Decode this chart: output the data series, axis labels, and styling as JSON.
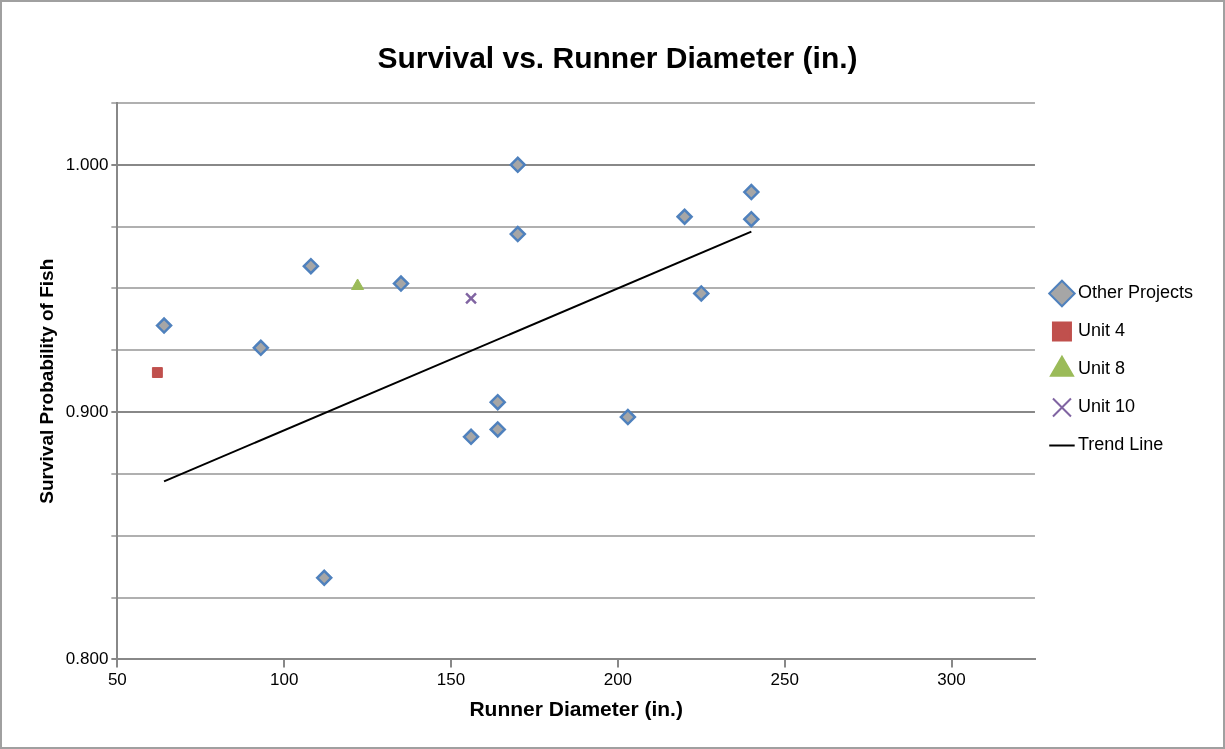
{
  "chart_data": {
    "type": "scatter",
    "title": "Survival vs. Runner Diameter (in.)",
    "xlabel": "Runner Diameter (in.)",
    "ylabel": "Survival Probability of Fish",
    "xlim": [
      50,
      325
    ],
    "xticks": [
      50,
      100,
      150,
      200,
      250,
      300
    ],
    "ylim": [
      0.8,
      1.025
    ],
    "yticks": [
      {
        "value": 0.8,
        "label": "0.800"
      },
      {
        "value": 0.825,
        "label": null
      },
      {
        "value": 0.85,
        "label": null
      },
      {
        "value": 0.875,
        "label": null
      },
      {
        "value": 0.9,
        "label": "0.900"
      },
      {
        "value": 0.925,
        "label": null
      },
      {
        "value": 0.95,
        "label": null
      },
      {
        "value": 0.975,
        "label": null
      },
      {
        "value": 1.0,
        "label": "1.000"
      },
      {
        "value": 1.025,
        "label": null
      }
    ],
    "grid": "y",
    "legend": "right",
    "series": [
      {
        "name": "Other Projects",
        "color": "#4f81bd",
        "marker": "diamond",
        "x": [
          64,
          93,
          108,
          112,
          135,
          170,
          170,
          164,
          164,
          156,
          203,
          220,
          225,
          240,
          240
        ],
        "values": [
          0.935,
          0.926,
          0.959,
          0.833,
          0.952,
          1.0,
          0.972,
          0.904,
          0.893,
          0.89,
          0.898,
          0.979,
          0.948,
          0.989,
          0.978
        ]
      },
      {
        "name": "Unit 4",
        "color": "#c0504d",
        "marker": "square",
        "x": [
          62
        ],
        "values": [
          0.916
        ]
      },
      {
        "name": "Unit 8",
        "color": "#9bbb59",
        "marker": "triangle",
        "x": [
          122
        ],
        "values": [
          0.951
        ]
      },
      {
        "name": "Unit 10",
        "color": "#8064a2",
        "marker": "cross",
        "x": [
          156
        ],
        "values": [
          0.946
        ]
      },
      {
        "name": "Trend Line",
        "type": "line",
        "color": "#000000",
        "marker": "none",
        "line_style": "solid",
        "x": [
          64,
          240
        ],
        "values": [
          0.872,
          0.973
        ]
      }
    ]
  }
}
